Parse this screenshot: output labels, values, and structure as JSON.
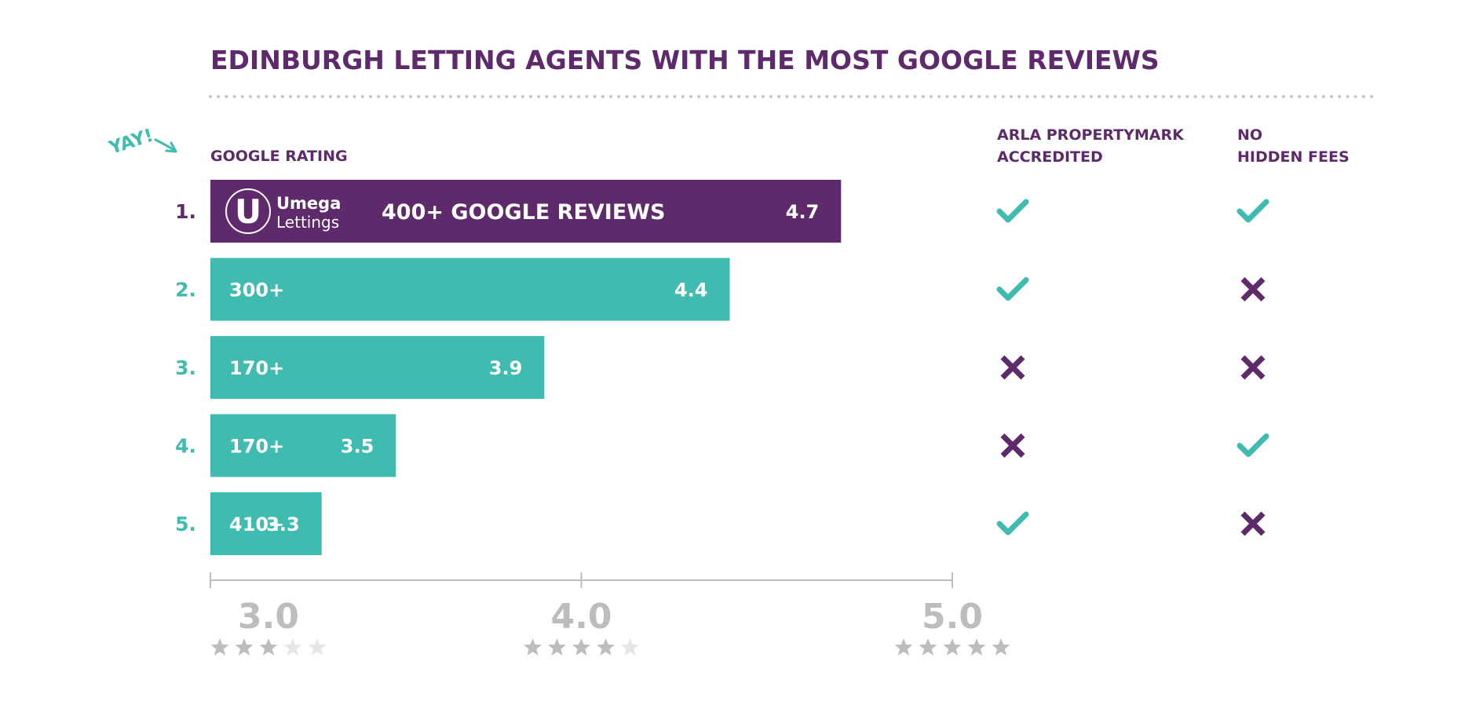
{
  "colors": {
    "purple": "#5f2a6b",
    "teal": "#40bbb0",
    "axis_gray": "#bdbdbd",
    "star_filled": "#bdbdbd",
    "star_empty": "#e6e6e6",
    "dots": "#c8c8c8"
  },
  "chart_data": {
    "type": "bar",
    "orientation": "horizontal",
    "title": "EDINBURGH LETTING AGENTS WITH THE MOST GOOGLE REVIEWS",
    "xlabel": "GOOGLE RATING",
    "xlim": [
      3.0,
      5.0
    ],
    "x_ticks": [
      "3.0",
      "4.0",
      "5.0"
    ],
    "tick_stars": [
      3,
      4,
      5
    ],
    "annotation": "YAY!",
    "categories": [
      "1.",
      "2.",
      "3.",
      "4.",
      "5."
    ],
    "values": [
      4.7,
      4.4,
      3.9,
      3.5,
      3.3
    ],
    "value_labels": [
      "4.7",
      "4.4",
      "3.9",
      "3.5",
      "3.3"
    ],
    "review_labels": [
      "400+ GOOGLE REVIEWS",
      "300+",
      "170+",
      "170+",
      "410+"
    ],
    "logo": {
      "brand": "Umega",
      "sub": "Lettings",
      "letter": "U"
    },
    "columns": [
      {
        "header_lines": [
          "ARLA PROPERTYMARK",
          "ACCREDITED"
        ],
        "values": [
          true,
          true,
          false,
          false,
          true
        ]
      },
      {
        "header_lines": [
          "NO",
          "HIDDEN FEES"
        ],
        "values": [
          true,
          false,
          false,
          true,
          false
        ]
      }
    ],
    "legend": "none",
    "grid": false
  }
}
